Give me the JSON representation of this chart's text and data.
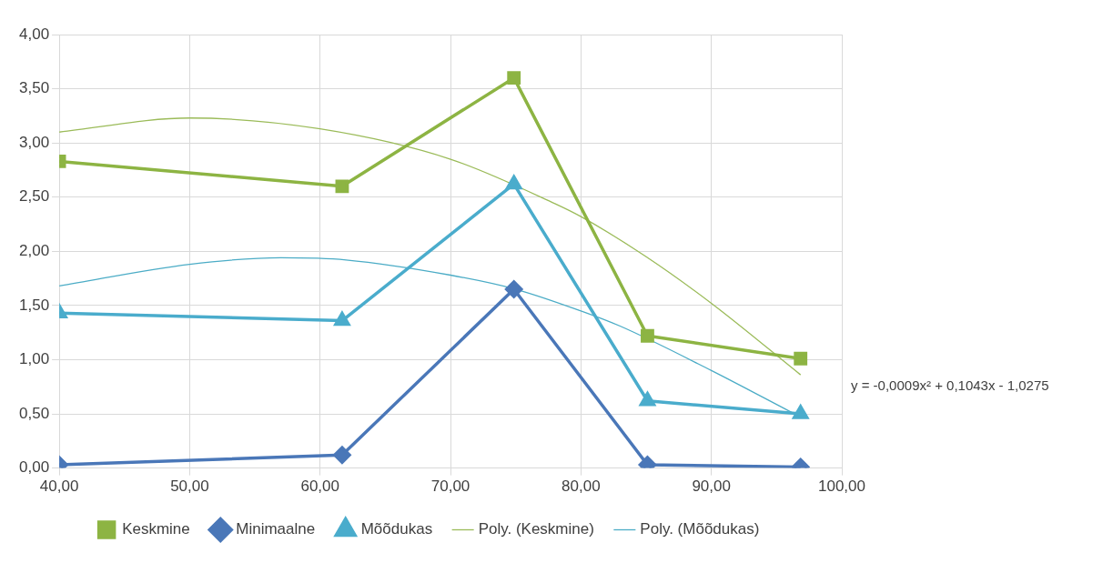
{
  "chart_data": {
    "type": "line",
    "x": [
      40,
      61.69,
      74.86,
      85.1,
      96.84
    ],
    "series": [
      {
        "name": "Keskmine",
        "color": "#8db443",
        "marker": "square",
        "values": [
          2.83,
          2.6,
          3.6,
          1.22,
          1.01
        ]
      },
      {
        "name": "Minimaalne",
        "color": "#4a77b8",
        "marker": "diamond",
        "values": [
          0.03,
          0.12,
          1.65,
          0.03,
          0.01
        ]
      },
      {
        "name": "Mõõdukas",
        "color": "#4aaccc",
        "marker": "triangle",
        "values": [
          1.43,
          1.36,
          2.62,
          0.62,
          0.5
        ]
      },
      {
        "name": "Poly. (Keskmine)",
        "color": "#9bbb59",
        "marker": "none",
        "x": [
          40,
          50,
          60,
          70,
          78,
          80,
          85,
          90,
          96.84
        ],
        "values": [
          3.1,
          3.23,
          3.13,
          2.85,
          2.44,
          2.32,
          1.95,
          1.52,
          0.86
        ]
      },
      {
        "name": "Poly. (Mõõdukas)",
        "color": "#4bacc6",
        "marker": "none",
        "x": [
          40,
          50,
          57,
          62,
          70,
          75,
          80,
          83,
          90,
          96.84
        ],
        "values": [
          1.68,
          1.88,
          1.94,
          1.92,
          1.78,
          1.65,
          1.45,
          1.31,
          0.9,
          0.47
        ]
      }
    ],
    "xlim": [
      40,
      100
    ],
    "xticks": [
      {
        "value": 40,
        "label": "40,00"
      },
      {
        "value": 50,
        "label": "50,00"
      },
      {
        "value": 60,
        "label": "60,00"
      },
      {
        "value": 70,
        "label": "70,00"
      },
      {
        "value": 80,
        "label": "80,00"
      },
      {
        "value": 90,
        "label": "90,00"
      },
      {
        "value": 100,
        "label": "100,00"
      }
    ],
    "ylim": [
      0,
      4
    ],
    "yticks": [
      {
        "value": 0,
        "label": "0,00"
      },
      {
        "value": 0.5,
        "label": "0,50"
      },
      {
        "value": 1,
        "label": "1,00"
      },
      {
        "value": 1.5,
        "label": "1,50"
      },
      {
        "value": 2,
        "label": "2,00"
      },
      {
        "value": 2.5,
        "label": "2,50"
      },
      {
        "value": 3,
        "label": "3,00"
      },
      {
        "value": 3.5,
        "label": "3,50"
      },
      {
        "value": 4,
        "label": "4,00"
      }
    ],
    "grid": true,
    "legend": "bottom",
    "annotations": [
      "y = -0,0009x² + 0,1043x - 1,0275"
    ]
  }
}
